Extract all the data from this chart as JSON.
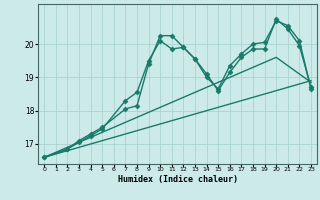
{
  "title": "",
  "xlabel": "Humidex (Indice chaleur)",
  "bg_color": "#cceae8",
  "grid_color": "#aad4d0",
  "line_color": "#1a7a6a",
  "xlim": [
    -0.5,
    23.5
  ],
  "ylim": [
    16.4,
    21.2
  ],
  "yticks": [
    17,
    18,
    19,
    20
  ],
  "xticks": [
    0,
    1,
    2,
    3,
    4,
    5,
    6,
    7,
    8,
    9,
    10,
    11,
    12,
    13,
    14,
    15,
    16,
    17,
    18,
    19,
    20,
    21,
    22,
    23
  ],
  "series": [
    {
      "x": [
        0,
        23
      ],
      "y": [
        16.6,
        18.9
      ],
      "marker": null,
      "linewidth": 1.0
    },
    {
      "x": [
        0,
        20,
        23
      ],
      "y": [
        16.6,
        19.6,
        18.85
      ],
      "marker": null,
      "linewidth": 1.0
    },
    {
      "x": [
        0,
        2,
        3,
        4,
        5,
        7,
        8,
        9,
        10,
        11,
        12,
        13,
        14,
        15,
        16,
        17,
        18,
        19,
        20,
        21,
        22,
        23
      ],
      "y": [
        16.6,
        16.85,
        17.05,
        17.25,
        17.45,
        18.3,
        18.55,
        19.5,
        20.1,
        19.85,
        19.9,
        19.55,
        19.1,
        18.6,
        19.15,
        19.6,
        19.85,
        19.85,
        20.75,
        20.45,
        19.95,
        18.7
      ],
      "marker": "D",
      "markersize": 2.5,
      "linewidth": 1.0
    },
    {
      "x": [
        0,
        2,
        3,
        4,
        5,
        7,
        8,
        9,
        10,
        11,
        12,
        13,
        14,
        15,
        16,
        17,
        18,
        19,
        20,
        21,
        22,
        23
      ],
      "y": [
        16.6,
        16.85,
        17.1,
        17.3,
        17.5,
        18.05,
        18.15,
        19.4,
        20.25,
        20.25,
        19.9,
        19.55,
        19.0,
        18.65,
        19.35,
        19.7,
        20.0,
        20.05,
        20.7,
        20.55,
        20.1,
        18.65
      ],
      "marker": "D",
      "markersize": 2.5,
      "linewidth": 1.0
    }
  ]
}
